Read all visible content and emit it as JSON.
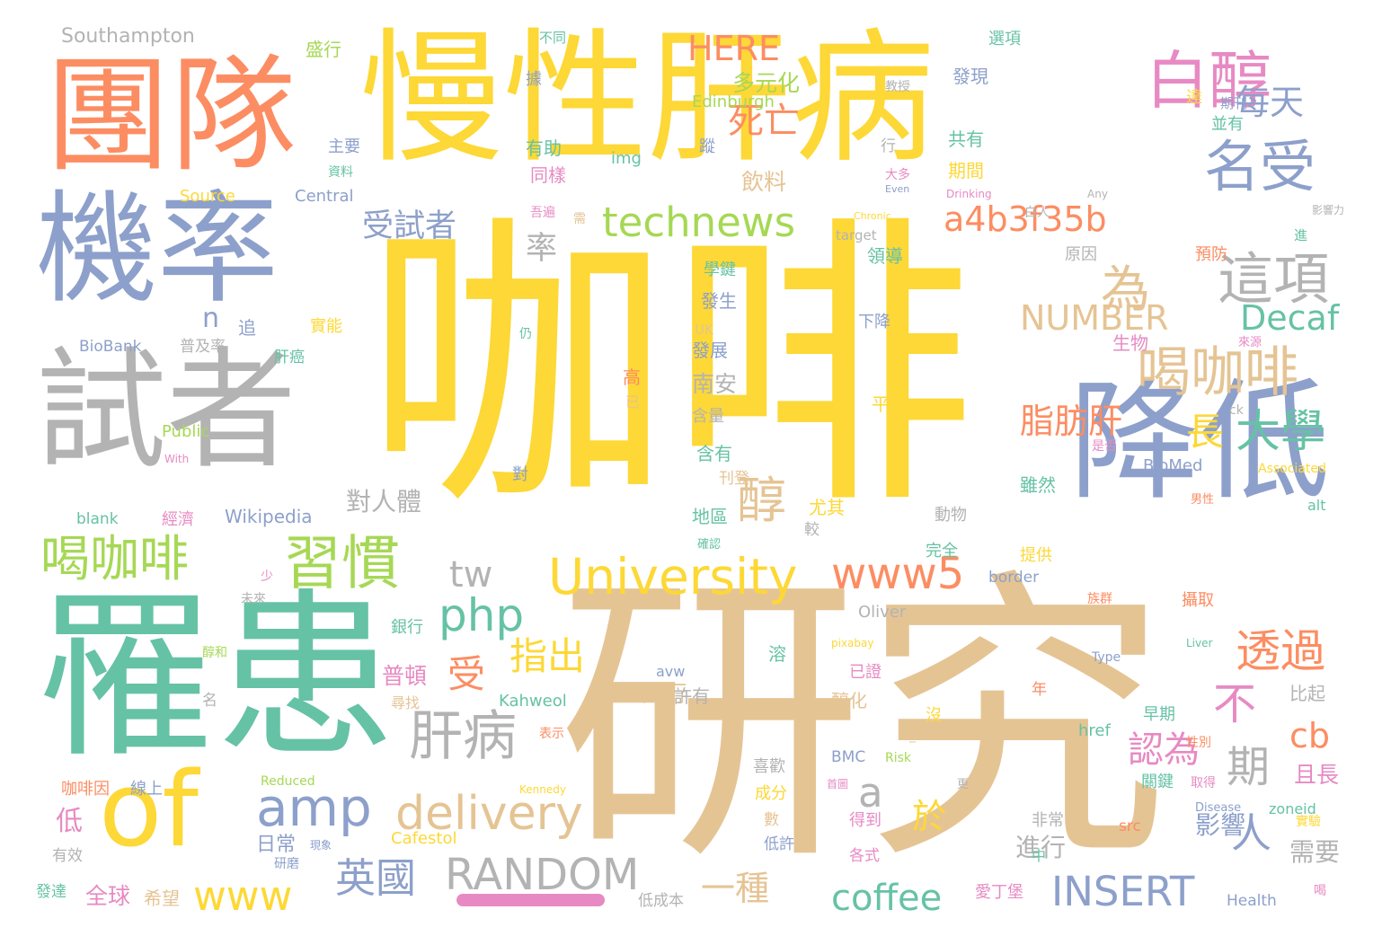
{
  "palette": {
    "yellow": "#fdd836",
    "tan": "#e5c494",
    "blue": "#8da0cb",
    "green": "#66c2a5",
    "orange": "#fc8d62",
    "pink": "#e78ac3",
    "lime": "#a6d854",
    "gray": "#b3b3b3"
  },
  "words": [
    {
      "text": "咖啡",
      "color": "yellow"
    },
    {
      "text": "研究",
      "color": "tan"
    },
    {
      "text": "慢性肝病",
      "color": "yellow"
    },
    {
      "text": "罹患",
      "color": "green"
    },
    {
      "text": "團隊",
      "color": "orange"
    },
    {
      "text": "機率",
      "color": "blue"
    },
    {
      "text": "試者",
      "color": "gray"
    },
    {
      "text": "降低",
      "color": "blue"
    },
    {
      "text": "of",
      "color": "yellow"
    },
    {
      "text": "白醇",
      "color": "pink"
    },
    {
      "text": "名受",
      "color": "blue"
    },
    {
      "text": "這項",
      "color": "gray"
    },
    {
      "text": "喝咖啡",
      "color": "tan"
    },
    {
      "text": "喝咖啡",
      "color": "lime"
    },
    {
      "text": "習慣",
      "color": "lime"
    },
    {
      "text": "University",
      "color": "yellow"
    },
    {
      "text": "technews",
      "color": "lime"
    },
    {
      "text": "a4b3f35b",
      "color": "orange"
    },
    {
      "text": "NUMBER",
      "color": "tan"
    },
    {
      "text": "Decaf",
      "color": "green"
    },
    {
      "text": "大學",
      "color": "green"
    },
    {
      "text": "肝病",
      "color": "gray"
    },
    {
      "text": "amp",
      "color": "blue"
    },
    {
      "text": "delivery",
      "color": "tan"
    },
    {
      "text": "RANDOM",
      "color": "gray"
    },
    {
      "text": "www5",
      "color": "orange"
    },
    {
      "text": "INSERT",
      "color": "blue"
    },
    {
      "text": "www",
      "color": "yellow"
    },
    {
      "text": "coffee",
      "color": "green"
    },
    {
      "text": "透過",
      "color": "orange"
    },
    {
      "text": "HERE",
      "color": "orange"
    },
    {
      "text": "死亡",
      "color": "orange"
    },
    {
      "text": "脂肪肝",
      "color": "orange"
    },
    {
      "text": "指出",
      "color": "yellow"
    },
    {
      "text": "php",
      "color": "green"
    },
    {
      "text": "英國",
      "color": "blue"
    },
    {
      "text": "醇",
      "color": "tan"
    },
    {
      "text": "為",
      "color": "tan"
    },
    {
      "text": "長",
      "color": "yellow"
    },
    {
      "text": "期",
      "color": "gray"
    },
    {
      "text": "人",
      "color": "blue"
    },
    {
      "text": "不",
      "color": "pink"
    },
    {
      "text": "每天",
      "color": "blue"
    },
    {
      "text": "受試者",
      "color": "blue"
    },
    {
      "text": "率",
      "color": "gray"
    },
    {
      "text": "tw",
      "color": "gray"
    },
    {
      "text": "受",
      "color": "orange"
    },
    {
      "text": "cb",
      "color": "orange"
    },
    {
      "text": "認為",
      "color": "pink"
    },
    {
      "text": "a",
      "color": "gray"
    },
    {
      "text": "於",
      "color": "yellow"
    },
    {
      "text": "一種",
      "color": "tan"
    },
    {
      "text": "Southampton",
      "color": "gray"
    },
    {
      "text": "n",
      "color": "blue"
    },
    {
      "text": "多元化",
      "color": "lime"
    },
    {
      "text": "Edinburgh",
      "color": "lime"
    },
    {
      "text": "飲料",
      "color": "tan"
    },
    {
      "text": "對人體",
      "color": "gray"
    },
    {
      "text": "影響",
      "color": "blue"
    },
    {
      "text": "需要",
      "color": "gray"
    },
    {
      "text": "進行",
      "color": "gray"
    },
    {
      "text": "且長",
      "color": "pink"
    },
    {
      "text": "風行",
      "color": "tan"
    },
    {
      "text": "普頓",
      "color": "pink"
    },
    {
      "text": "全球",
      "color": "pink"
    },
    {
      "text": "希望",
      "color": "tan"
    },
    {
      "text": "低",
      "color": "pink"
    },
    {
      "text": "Kahweol",
      "color": "green"
    },
    {
      "text": "Wikipedia",
      "color": "blue"
    },
    {
      "text": "Central",
      "color": "blue"
    },
    {
      "text": "Source",
      "color": "yellow"
    },
    {
      "text": "img",
      "color": "green"
    },
    {
      "text": "南安",
      "color": "gray"
    },
    {
      "text": "日常",
      "color": "blue"
    },
    {
      "text": "盛行",
      "color": "lime"
    },
    {
      "text": "主要",
      "color": "blue"
    },
    {
      "text": "資料",
      "color": "green"
    },
    {
      "text": "有助",
      "color": "green"
    },
    {
      "text": "同樣",
      "color": "pink"
    },
    {
      "text": "共有",
      "color": "green"
    },
    {
      "text": "期間",
      "color": "yellow"
    },
    {
      "text": "發現",
      "color": "blue"
    },
    {
      "text": "期刊",
      "color": "blue"
    },
    {
      "text": "並有",
      "color": "green"
    },
    {
      "text": "選項",
      "color": "green"
    },
    {
      "text": "不同",
      "color": "green"
    },
    {
      "text": "據",
      "color": "blue"
    },
    {
      "text": "教授",
      "color": "gray"
    },
    {
      "text": "達",
      "color": "yellow"
    },
    {
      "text": "預防",
      "color": "orange"
    },
    {
      "text": "原因",
      "color": "gray"
    },
    {
      "text": "領導",
      "color": "green"
    },
    {
      "text": "學鍵",
      "color": "green"
    },
    {
      "text": "發生",
      "color": "blue"
    },
    {
      "text": "實能",
      "color": "yellow"
    },
    {
      "text": "追",
      "color": "blue"
    },
    {
      "text": "BioBank",
      "color": "blue"
    },
    {
      "text": "普及率",
      "color": "gray"
    },
    {
      "text": "肝癌",
      "color": "green"
    },
    {
      "text": "UK",
      "color": "tan"
    },
    {
      "text": "發展",
      "color": "blue"
    },
    {
      "text": "下降",
      "color": "blue"
    },
    {
      "text": "生物",
      "color": "pink"
    },
    {
      "text": "平均",
      "color": "yellow"
    },
    {
      "text": "含量",
      "color": "gray"
    },
    {
      "text": "含有",
      "color": "green"
    },
    {
      "text": "刊登",
      "color": "tan"
    },
    {
      "text": "Public",
      "color": "lime"
    },
    {
      "text": "With",
      "color": "pink"
    },
    {
      "text": "BioMed",
      "color": "blue"
    },
    {
      "text": "Associated",
      "color": "yellow"
    },
    {
      "text": "雖然",
      "color": "green"
    },
    {
      "text": "尤其",
      "color": "yellow"
    },
    {
      "text": "動物",
      "color": "gray"
    },
    {
      "text": "較",
      "color": "gray"
    },
    {
      "text": "地區",
      "color": "green"
    },
    {
      "text": "提供",
      "color": "yellow"
    },
    {
      "text": "完全",
      "color": "green"
    },
    {
      "text": "經濟",
      "color": "pink"
    },
    {
      "text": "blank",
      "color": "green"
    },
    {
      "text": "border",
      "color": "blue"
    },
    {
      "text": "攝取",
      "color": "orange"
    },
    {
      "text": "族群",
      "color": "orange"
    },
    {
      "text": "Oliver",
      "color": "gray"
    },
    {
      "text": "銀行",
      "color": "green"
    },
    {
      "text": "avw",
      "color": "blue"
    },
    {
      "text": "pixabay",
      "color": "yellow"
    },
    {
      "text": "Liver",
      "color": "green"
    },
    {
      "text": "Type",
      "color": "blue"
    },
    {
      "text": "溶",
      "color": "green"
    },
    {
      "text": "已證",
      "color": "pink"
    },
    {
      "text": "醇化",
      "color": "tan"
    },
    {
      "text": "許有",
      "color": "gray"
    },
    {
      "text": "年",
      "color": "orange"
    },
    {
      "text": "比起",
      "color": "gray"
    },
    {
      "text": "早期",
      "color": "green"
    },
    {
      "text": "href",
      "color": "green"
    },
    {
      "text": "BMC",
      "color": "blue"
    },
    {
      "text": "Risk",
      "color": "lime"
    },
    {
      "text": "喜歡",
      "color": "gray"
    },
    {
      "text": "成分",
      "color": "yellow"
    },
    {
      "text": "關鍵",
      "color": "green"
    },
    {
      "text": "取得",
      "color": "pink"
    },
    {
      "text": "zoneid",
      "color": "green"
    },
    {
      "text": "實驗",
      "color": "yellow"
    },
    {
      "text": "Disease",
      "color": "blue"
    },
    {
      "text": "咖啡因",
      "color": "orange"
    },
    {
      "text": "線上",
      "color": "blue"
    },
    {
      "text": "Reduced",
      "color": "lime"
    },
    {
      "text": "Kennedy",
      "color": "yellow"
    },
    {
      "text": "Cafestol",
      "color": "yellow"
    },
    {
      "text": "數",
      "color": "tan"
    },
    {
      "text": "低許",
      "color": "blue"
    },
    {
      "text": "得到",
      "color": "pink"
    },
    {
      "text": "非常",
      "color": "gray"
    },
    {
      "text": "各式",
      "color": "pink"
    },
    {
      "text": "src",
      "color": "orange"
    },
    {
      "text": "中",
      "color": "green"
    },
    {
      "text": "有效",
      "color": "gray"
    },
    {
      "text": "發達",
      "color": "green"
    },
    {
      "text": "研磨",
      "color": "blue"
    },
    {
      "text": "現象",
      "color": "blue"
    },
    {
      "text": "低成本",
      "color": "gray"
    },
    {
      "text": "愛丁堡",
      "color": "pink"
    },
    {
      "text": "Health",
      "color": "blue"
    },
    {
      "text": "喝",
      "color": "pink"
    },
    {
      "text": "Even",
      "color": "blue"
    },
    {
      "text": "Drinking",
      "color": "pink"
    },
    {
      "text": "Any",
      "color": "gray"
    },
    {
      "text": "Chronic",
      "color": "yellow"
    },
    {
      "text": "target",
      "color": "gray"
    },
    {
      "text": "白人",
      "color": "gray"
    },
    {
      "text": "影響力",
      "color": "gray"
    },
    {
      "text": "進",
      "color": "green"
    },
    {
      "text": "大多",
      "color": "pink"
    },
    {
      "text": "行",
      "color": "gray"
    },
    {
      "text": "蹤",
      "color": "blue"
    },
    {
      "text": "吾遍",
      "color": "pink"
    },
    {
      "text": "需",
      "color": "tan"
    },
    {
      "text": "仍",
      "color": "green"
    },
    {
      "text": "來源",
      "color": "pink"
    },
    {
      "text": "高",
      "color": "orange"
    },
    {
      "text": "已",
      "color": "tan"
    },
    {
      "text": "ck",
      "color": "gray"
    },
    {
      "text": "是否",
      "color": "pink"
    },
    {
      "text": "alt",
      "color": "green"
    },
    {
      "text": "男性",
      "color": "orange"
    },
    {
      "text": "對",
      "color": "blue"
    },
    {
      "text": "確認",
      "color": "green"
    },
    {
      "text": "少",
      "color": "pink"
    },
    {
      "text": "未來",
      "color": "gray"
    },
    {
      "text": "醇和",
      "color": "lime"
    },
    {
      "text": "名",
      "color": "gray"
    },
    {
      "text": "尋找",
      "color": "tan"
    },
    {
      "text": "表示",
      "color": "orange"
    },
    {
      "text": "性別",
      "color": "orange"
    },
    {
      "text": "沒",
      "color": "yellow"
    },
    {
      "text": "首圖",
      "color": "pink"
    },
    {
      "text": "更",
      "color": "gray"
    },
    {
      "text": "_",
      "color": "tan"
    }
  ]
}
